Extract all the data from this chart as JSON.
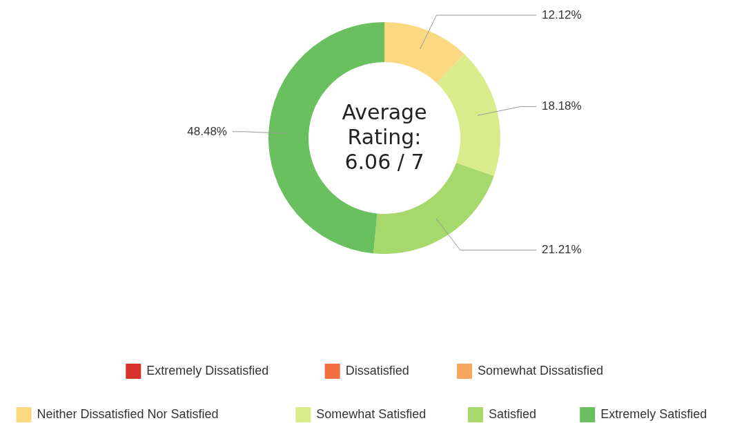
{
  "chart_data": {
    "type": "donut",
    "categories": [
      "Extremely Dissatisfied",
      "Dissatisfied",
      "Somewhat Dissatisfied",
      "Neither Dissatisfied Nor Satisfied",
      "Somewhat Satisfied",
      "Satisfied",
      "Extremely Satisfied"
    ],
    "values": [
      0,
      0,
      0,
      12.12,
      18.18,
      21.21,
      48.48
    ],
    "colors": [
      "#d8322a",
      "#f2703f",
      "#f9a75e",
      "#fbd882",
      "#d9ec8c",
      "#a6d86c",
      "#6abf5f"
    ],
    "value_labels": [
      null,
      null,
      null,
      "12.12%",
      "18.18%",
      "21.21%",
      "48.48%"
    ],
    "annotations": [
      "Average Rating: 6.06 / 7"
    ],
    "legend": "bottom"
  }
}
